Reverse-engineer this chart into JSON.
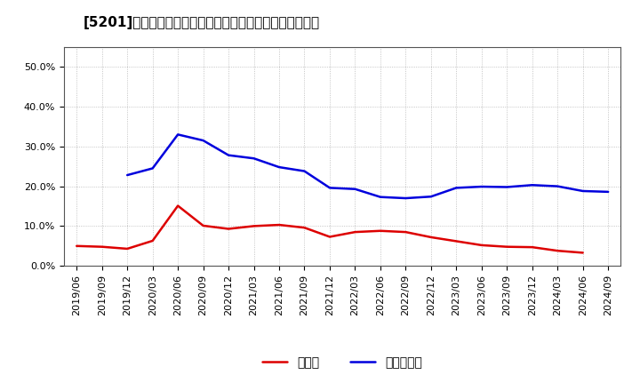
{
  "title": "[5201]　現頲金、有利子負債の総資産に対する比率の推移",
  "x_labels": [
    "2019/06",
    "2019/09",
    "2019/12",
    "2020/03",
    "2020/06",
    "2020/09",
    "2020/12",
    "2021/03",
    "2021/06",
    "2021/09",
    "2021/12",
    "2022/03",
    "2022/06",
    "2022/09",
    "2022/12",
    "2023/03",
    "2023/06",
    "2023/09",
    "2023/12",
    "2024/03",
    "2024/06",
    "2024/09"
  ],
  "cash": [
    0.05,
    0.048,
    0.043,
    0.063,
    0.151,
    0.101,
    0.093,
    0.1,
    0.103,
    0.096,
    0.073,
    0.085,
    0.088,
    0.085,
    0.072,
    0.062,
    0.052,
    0.048,
    0.047,
    0.038,
    0.033,
    null
  ],
  "debt": [
    null,
    null,
    0.228,
    0.245,
    0.33,
    0.315,
    0.278,
    0.27,
    0.248,
    0.238,
    0.196,
    0.193,
    0.173,
    0.17,
    0.174,
    0.196,
    0.199,
    0.198,
    0.203,
    0.2,
    0.188,
    0.186
  ],
  "cash_color": "#dd0000",
  "debt_color": "#0000dd",
  "background_color": "#ffffff",
  "grid_color": "#999999",
  "ylim": [
    0.0,
    0.55
  ],
  "yticks": [
    0.0,
    0.1,
    0.2,
    0.3,
    0.4,
    0.5
  ],
  "legend_cash": "現頲金",
  "legend_debt": "有利子負債",
  "title_fontsize": 11,
  "tick_fontsize": 8,
  "legend_fontsize": 10
}
